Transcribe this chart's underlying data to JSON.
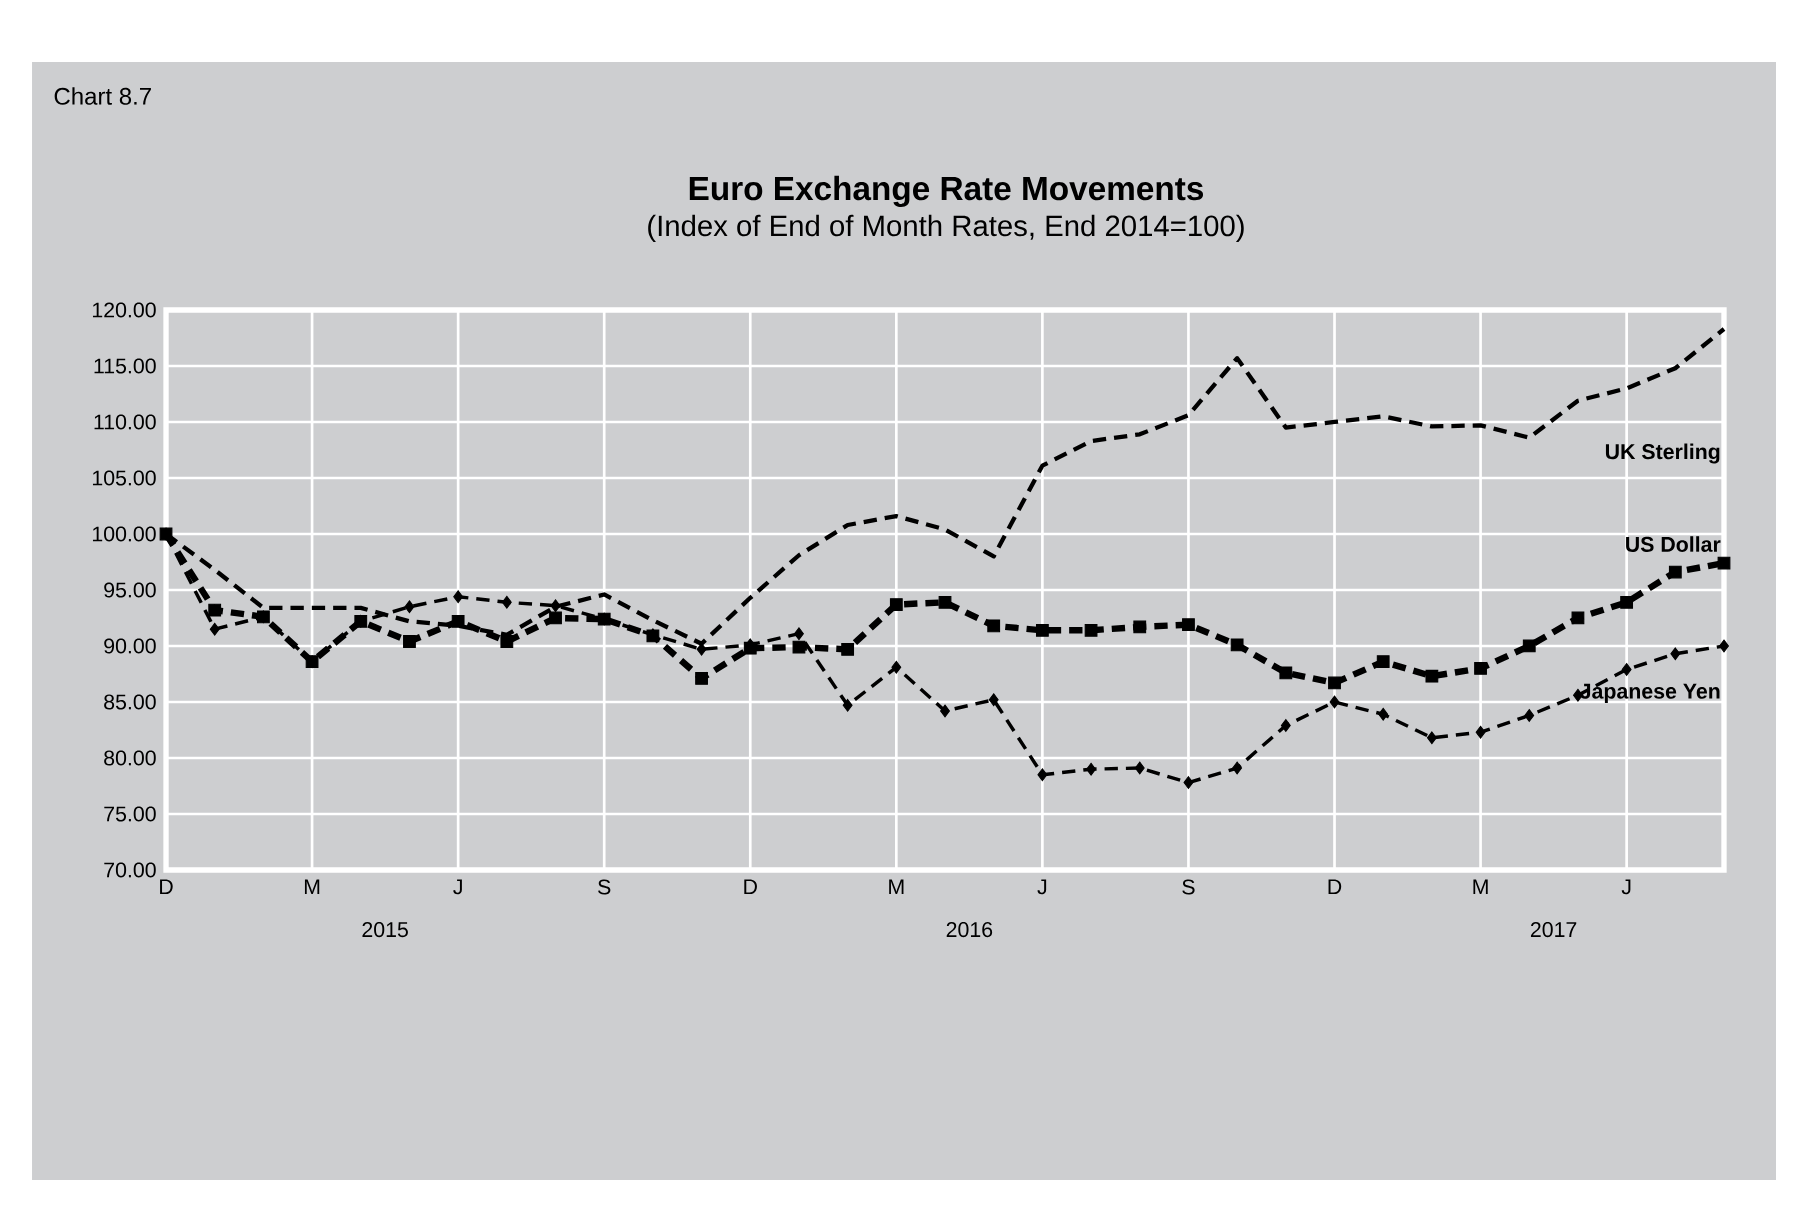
{
  "chart_data": {
    "type": "line",
    "title": "Euro Exchange Rate Movements",
    "subtitle": "(Index of End of Month Rates, End 2014=100)",
    "categories": [
      "D",
      null,
      null,
      "M",
      null,
      null,
      "J",
      null,
      null,
      "S",
      null,
      null,
      "D",
      null,
      null,
      "M",
      null,
      null,
      "J",
      null,
      null,
      "S",
      null,
      null,
      "D",
      null,
      null,
      "M",
      null,
      null,
      "J",
      null,
      null
    ],
    "series": [
      {
        "name": "UK Sterling",
        "color": "#000000",
        "marker": "none",
        "values": [
          100,
          96.8,
          93.4,
          93.4,
          93.4,
          92.2,
          91.8,
          91.0,
          93.5,
          94.6,
          92.3,
          90.2,
          94.3,
          98.1,
          100.8,
          101.6,
          100.4,
          98.0,
          106.1,
          108.3,
          108.9,
          110.6,
          115.7,
          109.5,
          110.0,
          110.5,
          109.6,
          109.7,
          108.6,
          111.9,
          113.0,
          114.8,
          118.3
        ]
      },
      {
        "name": "US Dollar",
        "color": "#000000",
        "marker": "square",
        "values": [
          100,
          93.2,
          92.6,
          88.6,
          92.2,
          90.4,
          92.2,
          90.4,
          92.5,
          92.4,
          90.9,
          87.1,
          89.8,
          89.9,
          89.7,
          93.7,
          93.9,
          91.8,
          91.4,
          91.4,
          91.7,
          91.9,
          90.1,
          87.6,
          86.7,
          88.6,
          87.3,
          88.0,
          90.0,
          92.5,
          93.9,
          96.6,
          97.4
        ]
      },
      {
        "name": "Japanese Yen",
        "color": "#000000",
        "marker": "diamond",
        "values": [
          100,
          91.5,
          92.6,
          88.6,
          92.2,
          93.5,
          94.4,
          93.9,
          93.6,
          92.4,
          91.0,
          89.7,
          90.1,
          91.1,
          84.7,
          88.1,
          84.2,
          85.2,
          78.5,
          79.0,
          79.1,
          77.8,
          79.1,
          82.9,
          85.0,
          83.9,
          81.8,
          82.3,
          83.8,
          85.6,
          87.9,
          89.3,
          90.0
        ]
      }
    ],
    "ylim": [
      70,
      120
    ],
    "yticks": [
      {
        "value": 70,
        "label": "70.00"
      },
      {
        "value": 75,
        "label": "75.00"
      },
      {
        "value": 80,
        "label": "80.00"
      },
      {
        "value": 85,
        "label": "85.00"
      },
      {
        "value": 90,
        "label": "90.00"
      },
      {
        "value": 95,
        "label": "95.00"
      },
      {
        "value": 100,
        "label": "100.00"
      },
      {
        "value": 105,
        "label": "105.00"
      },
      {
        "value": 110,
        "label": "110.00"
      },
      {
        "value": 115,
        "label": "115.00"
      },
      {
        "value": 120,
        "label": "120.00"
      }
    ],
    "grid": true,
    "legend": false,
    "line_style": "dashed",
    "annotations": [
      "Chart 8.7",
      "2015",
      "2016",
      "2017"
    ]
  }
}
